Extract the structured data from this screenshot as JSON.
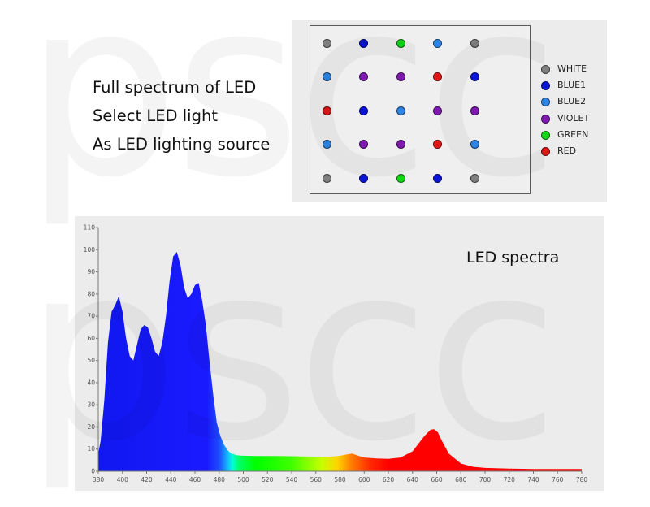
{
  "watermark": "pscc",
  "intro": {
    "lines": [
      "Full spectrum of LED",
      "Select LED light",
      "As LED lighting source"
    ]
  },
  "led_layout": {
    "grid": [
      [
        "WHITE",
        "BLUE1",
        "GREEN",
        "BLUE2",
        "WHITE"
      ],
      [
        "BLUE2",
        "VIOLET",
        "VIOLET",
        "RED",
        "BLUE1"
      ],
      [
        "RED",
        "BLUE1",
        "BLUE2",
        "VIOLET",
        "VIOLET"
      ],
      [
        "BLUE2",
        "VIOLET",
        "VIOLET",
        "RED",
        "BLUE2"
      ],
      [
        "WHITE",
        "BLUE1",
        "GREEN",
        "BLUE1",
        "WHITE"
      ]
    ],
    "legend": [
      {
        "label": "WHITE",
        "color": "#808080"
      },
      {
        "label": "BLUE1",
        "color": "#0a14d8"
      },
      {
        "label": "BLUE2",
        "color": "#2d86e6"
      },
      {
        "label": "VIOLET",
        "color": "#7f1ab0"
      },
      {
        "label": "GREEN",
        "color": "#12d818"
      },
      {
        "label": "RED",
        "color": "#e01818"
      }
    ]
  },
  "chart_data": {
    "type": "area",
    "title": "LED spectra",
    "xlabel": "",
    "ylabel": "",
    "xlim": [
      380,
      780
    ],
    "ylim": [
      0,
      110
    ],
    "x_ticks": [
      380,
      400,
      420,
      440,
      460,
      480,
      500,
      520,
      540,
      560,
      580,
      600,
      620,
      640,
      660,
      680,
      700,
      720,
      740,
      760,
      780
    ],
    "y_ticks": [
      0,
      10,
      20,
      30,
      40,
      50,
      60,
      70,
      80,
      90,
      100,
      110
    ],
    "grid": false,
    "fill": "wavelength-colored gradient",
    "series": [
      {
        "x": [
          380,
          382,
          385,
          388,
          391,
          394,
          397,
          400,
          403,
          406,
          409,
          412,
          415,
          418,
          421,
          424,
          427,
          430,
          433,
          436,
          439,
          442,
          445,
          448,
          451,
          454,
          457,
          460,
          463,
          466,
          469,
          472,
          475,
          478,
          481,
          484,
          487,
          490,
          495,
          500,
          510,
          520,
          530,
          540,
          550,
          560,
          570,
          575,
          580,
          585,
          590,
          595,
          600,
          610,
          620,
          630,
          640,
          645,
          650,
          655,
          658,
          661,
          665,
          670,
          680,
          690,
          700,
          720,
          740,
          760,
          780
        ],
        "values": [
          8,
          14,
          32,
          58,
          72,
          75,
          79,
          72,
          60,
          52,
          50,
          57,
          64,
          66,
          65,
          60,
          54,
          52,
          58,
          70,
          86,
          97,
          99,
          93,
          83,
          78,
          80,
          84,
          85,
          77,
          66,
          50,
          35,
          22,
          16,
          12,
          9.5,
          8,
          7.2,
          7,
          6.9,
          6.9,
          6.9,
          6.8,
          6.7,
          6.6,
          6.6,
          6.7,
          7,
          7.5,
          8,
          7,
          6.2,
          5.8,
          5.6,
          6.2,
          9,
          12.5,
          16,
          18.8,
          19,
          17.5,
          13,
          8,
          3.5,
          2,
          1.5,
          1.2,
          1,
          1,
          1
        ]
      }
    ]
  }
}
